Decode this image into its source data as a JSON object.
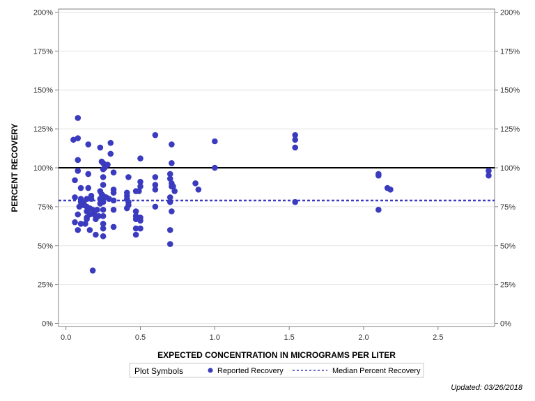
{
  "chart_data": {
    "type": "scatter",
    "xlabel": "EXPECTED CONCENTRATION IN MICROGRAMS PER LITER",
    "ylabel": "PERCENT RECOVERY",
    "xlim": [
      -0.05,
      2.88
    ],
    "ylim": [
      -2,
      202
    ],
    "x_ticks": [
      0.0,
      0.5,
      1.0,
      1.5,
      2.0,
      2.5
    ],
    "x_tick_labels": [
      "0.0",
      "0.5",
      "1.0",
      "1.5",
      "2.0",
      "2.5"
    ],
    "y_ticks": [
      0,
      25,
      50,
      75,
      100,
      125,
      150,
      175,
      200
    ],
    "y_tick_labels": [
      "0%",
      "25%",
      "50%",
      "75%",
      "100%",
      "125%",
      "150%",
      "175%",
      "200%"
    ],
    "reference_lines": [
      {
        "name": "100% reference",
        "y": 100,
        "style": "solid",
        "color": "#000000"
      },
      {
        "name": "Median Percent Recovery",
        "y": 79,
        "style": "dashed",
        "color": "#3b3bbf"
      }
    ],
    "series": [
      {
        "name": "Reported Recovery",
        "color": "#3b3bbf",
        "points": [
          [
            0.05,
            118
          ],
          [
            0.06,
            65
          ],
          [
            0.06,
            92
          ],
          [
            0.06,
            81
          ],
          [
            0.08,
            132
          ],
          [
            0.08,
            119
          ],
          [
            0.08,
            105
          ],
          [
            0.08,
            98
          ],
          [
            0.08,
            60
          ],
          [
            0.08,
            70
          ],
          [
            0.09,
            75
          ],
          [
            0.1,
            87
          ],
          [
            0.1,
            80
          ],
          [
            0.1,
            78
          ],
          [
            0.1,
            64
          ],
          [
            0.12,
            76
          ],
          [
            0.12,
            77
          ],
          [
            0.13,
            64
          ],
          [
            0.14,
            80
          ],
          [
            0.14,
            75
          ],
          [
            0.14,
            72
          ],
          [
            0.14,
            67
          ],
          [
            0.14,
            68
          ],
          [
            0.15,
            115
          ],
          [
            0.15,
            96
          ],
          [
            0.15,
            87
          ],
          [
            0.16,
            74
          ],
          [
            0.16,
            70
          ],
          [
            0.16,
            60
          ],
          [
            0.17,
            82
          ],
          [
            0.17,
            80
          ],
          [
            0.18,
            34
          ],
          [
            0.18,
            73
          ],
          [
            0.19,
            70
          ],
          [
            0.19,
            72
          ],
          [
            0.2,
            67
          ],
          [
            0.2,
            57
          ],
          [
            0.21,
            73
          ],
          [
            0.22,
            69
          ],
          [
            0.23,
            113
          ],
          [
            0.23,
            85
          ],
          [
            0.23,
            80
          ],
          [
            0.23,
            77
          ],
          [
            0.24,
            104
          ],
          [
            0.24,
            83
          ],
          [
            0.24,
            79
          ],
          [
            0.25,
            103
          ],
          [
            0.25,
            99
          ],
          [
            0.25,
            94
          ],
          [
            0.25,
            89
          ],
          [
            0.25,
            82
          ],
          [
            0.25,
            78
          ],
          [
            0.25,
            73
          ],
          [
            0.25,
            69
          ],
          [
            0.25,
            64
          ],
          [
            0.25,
            61
          ],
          [
            0.25,
            56
          ],
          [
            0.26,
            100
          ],
          [
            0.27,
            81
          ],
          [
            0.28,
            102
          ],
          [
            0.29,
            80
          ],
          [
            0.3,
            116
          ],
          [
            0.3,
            109
          ],
          [
            0.32,
            97
          ],
          [
            0.32,
            86
          ],
          [
            0.32,
            84
          ],
          [
            0.32,
            79
          ],
          [
            0.32,
            73
          ],
          [
            0.32,
            62
          ],
          [
            0.41,
            84
          ],
          [
            0.41,
            82
          ],
          [
            0.41,
            80
          ],
          [
            0.41,
            74
          ],
          [
            0.42,
            94
          ],
          [
            0.42,
            78
          ],
          [
            0.42,
            76
          ],
          [
            0.47,
            85
          ],
          [
            0.47,
            72
          ],
          [
            0.47,
            69
          ],
          [
            0.47,
            67
          ],
          [
            0.47,
            61
          ],
          [
            0.47,
            57
          ],
          [
            0.49,
            85
          ],
          [
            0.5,
            106
          ],
          [
            0.5,
            91
          ],
          [
            0.5,
            88
          ],
          [
            0.5,
            68
          ],
          [
            0.5,
            66
          ],
          [
            0.5,
            61
          ],
          [
            0.6,
            121
          ],
          [
            0.6,
            94
          ],
          [
            0.6,
            89
          ],
          [
            0.6,
            86
          ],
          [
            0.6,
            75
          ],
          [
            0.7,
            96
          ],
          [
            0.7,
            93
          ],
          [
            0.7,
            81
          ],
          [
            0.7,
            78
          ],
          [
            0.7,
            60
          ],
          [
            0.7,
            51
          ],
          [
            0.71,
            115
          ],
          [
            0.71,
            103
          ],
          [
            0.71,
            90
          ],
          [
            0.71,
            88
          ],
          [
            0.71,
            72
          ],
          [
            0.72,
            88
          ],
          [
            0.73,
            85
          ],
          [
            0.87,
            90
          ],
          [
            0.89,
            86
          ],
          [
            1.0,
            117
          ],
          [
            1.0,
            100
          ],
          [
            1.54,
            121
          ],
          [
            1.54,
            118
          ],
          [
            1.54,
            113
          ],
          [
            1.54,
            78
          ],
          [
            2.1,
            96
          ],
          [
            2.1,
            95
          ],
          [
            2.1,
            73
          ],
          [
            2.16,
            87
          ],
          [
            2.18,
            86
          ],
          [
            2.84,
            98
          ],
          [
            2.84,
            95
          ]
        ]
      }
    ],
    "legend": {
      "title": "Plot Symbols",
      "position": "bottom-center",
      "items": [
        {
          "label": "Reported Recovery",
          "symbol": "circle"
        },
        {
          "label": "Median Percent Recovery",
          "symbol": "dashed-line"
        }
      ]
    }
  },
  "footnote": "Updated: 03/26/2018"
}
